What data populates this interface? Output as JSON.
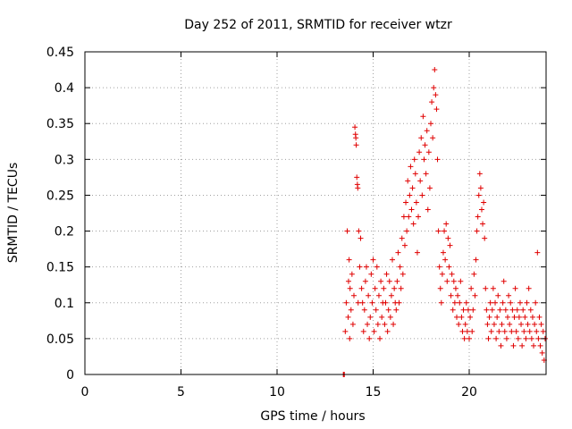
{
  "chart_data": {
    "type": "scatter",
    "title": "Day 252 of 2011, SRMTID for receiver wtzr",
    "xlabel": "GPS time / hours",
    "ylabel": "SRMTID / TECUs",
    "xlim": [
      0,
      24
    ],
    "ylim": [
      0,
      0.45
    ],
    "x_ticks": [
      0,
      5,
      10,
      15,
      20
    ],
    "y_ticks": [
      0,
      0.05,
      0.1,
      0.15,
      0.2,
      0.25,
      0.3,
      0.35,
      0.4,
      0.45
    ],
    "x_tick_labels": [
      "0",
      "5",
      "10",
      "15",
      "20"
    ],
    "y_tick_labels": [
      "0",
      "0.05",
      "0.1",
      "0.15",
      "0.2",
      "0.25",
      "0.3",
      "0.35",
      "0.4",
      "0.45"
    ],
    "grid": true,
    "marker": "+",
    "color": "#e00000",
    "series": [
      {
        "x": [
          13.45,
          13.47,
          13.5,
          13.55,
          13.6,
          13.65,
          13.7,
          13.72,
          13.75,
          13.78,
          13.8,
          13.85,
          13.9,
          13.95,
          14.0,
          14.05,
          14.08,
          14.1,
          14.12,
          14.15,
          14.18,
          14.2,
          14.22,
          14.25,
          14.3,
          14.35,
          14.4,
          14.45,
          14.5,
          14.55,
          14.6,
          14.65,
          14.7,
          14.75,
          14.8,
          14.85,
          14.9,
          14.95,
          15.0,
          15.05,
          15.1,
          15.15,
          15.2,
          15.25,
          15.3,
          15.35,
          15.4,
          15.45,
          15.5,
          15.55,
          15.6,
          15.65,
          15.7,
          15.75,
          15.8,
          15.85,
          15.9,
          15.95,
          16.0,
          16.05,
          16.1,
          16.15,
          16.2,
          16.25,
          16.3,
          16.35,
          16.4,
          16.45,
          16.5,
          16.55,
          16.6,
          16.65,
          16.7,
          16.75,
          16.8,
          16.85,
          16.9,
          16.95,
          17.0,
          17.05,
          17.1,
          17.15,
          17.2,
          17.25,
          17.3,
          17.35,
          17.4,
          17.45,
          17.5,
          17.55,
          17.6,
          17.65,
          17.7,
          17.75,
          17.8,
          17.85,
          17.9,
          17.95,
          18.0,
          18.05,
          18.1,
          18.15,
          18.2,
          18.25,
          18.3,
          18.35,
          18.4,
          18.45,
          18.5,
          18.55,
          18.6,
          18.65,
          18.7,
          18.75,
          18.8,
          18.85,
          18.9,
          18.95,
          19.0,
          19.05,
          19.1,
          19.15,
          19.2,
          19.25,
          19.3,
          19.35,
          19.4,
          19.45,
          19.5,
          19.55,
          19.6,
          19.65,
          19.7,
          19.75,
          19.8,
          19.85,
          19.9,
          19.95,
          20.0,
          20.05,
          20.1,
          20.15,
          20.2,
          20.25,
          20.3,
          20.35,
          20.4,
          20.45,
          20.5,
          20.55,
          20.6,
          20.65,
          20.7,
          20.75,
          20.8,
          20.85,
          20.9,
          20.95,
          21.0,
          21.05,
          21.1,
          21.15,
          21.2,
          21.25,
          21.3,
          21.35,
          21.4,
          21.45,
          21.5,
          21.55,
          21.6,
          21.65,
          21.7,
          21.75,
          21.8,
          21.85,
          21.9,
          21.95,
          22.0,
          22.05,
          22.1,
          22.15,
          22.2,
          22.25,
          22.3,
          22.35,
          22.4,
          22.45,
          22.5,
          22.55,
          22.6,
          22.65,
          22.7,
          22.75,
          22.8,
          22.85,
          22.9,
          22.95,
          23.0,
          23.05,
          23.1,
          23.15,
          23.2,
          23.25,
          23.3,
          23.35,
          23.4,
          23.45,
          23.5,
          23.55,
          23.6,
          23.65,
          23.7,
          23.75,
          23.8,
          23.85,
          23.9,
          23.95
        ],
        "y": [
          0.0,
          0.0,
          0.0,
          0.06,
          0.1,
          0.2,
          0.08,
          0.13,
          0.16,
          0.05,
          0.12,
          0.09,
          0.14,
          0.07,
          0.11,
          0.345,
          0.335,
          0.33,
          0.32,
          0.275,
          0.265,
          0.26,
          0.1,
          0.2,
          0.15,
          0.19,
          0.12,
          0.1,
          0.06,
          0.09,
          0.13,
          0.15,
          0.07,
          0.11,
          0.05,
          0.08,
          0.14,
          0.1,
          0.16,
          0.06,
          0.12,
          0.09,
          0.15,
          0.07,
          0.11,
          0.05,
          0.13,
          0.08,
          0.1,
          0.12,
          0.07,
          0.1,
          0.14,
          0.06,
          0.09,
          0.13,
          0.08,
          0.11,
          0.16,
          0.07,
          0.12,
          0.1,
          0.09,
          0.13,
          0.17,
          0.1,
          0.15,
          0.12,
          0.19,
          0.14,
          0.22,
          0.18,
          0.24,
          0.2,
          0.27,
          0.22,
          0.25,
          0.29,
          0.23,
          0.26,
          0.21,
          0.3,
          0.28,
          0.24,
          0.17,
          0.22,
          0.31,
          0.27,
          0.33,
          0.25,
          0.36,
          0.3,
          0.32,
          0.28,
          0.34,
          0.23,
          0.31,
          0.26,
          0.35,
          0.38,
          0.33,
          0.4,
          0.425,
          0.39,
          0.37,
          0.3,
          0.2,
          0.15,
          0.12,
          0.1,
          0.14,
          0.17,
          0.2,
          0.16,
          0.21,
          0.13,
          0.19,
          0.15,
          0.18,
          0.11,
          0.14,
          0.09,
          0.13,
          0.1,
          0.12,
          0.08,
          0.11,
          0.07,
          0.1,
          0.13,
          0.08,
          0.06,
          0.09,
          0.05,
          0.07,
          0.1,
          0.06,
          0.09,
          0.05,
          0.08,
          0.12,
          0.06,
          0.09,
          0.14,
          0.11,
          0.16,
          0.2,
          0.22,
          0.25,
          0.28,
          0.26,
          0.23,
          0.21,
          0.24,
          0.19,
          0.12,
          0.09,
          0.07,
          0.05,
          0.08,
          0.1,
          0.06,
          0.09,
          0.12,
          0.07,
          0.1,
          0.05,
          0.08,
          0.11,
          0.06,
          0.09,
          0.04,
          0.07,
          0.1,
          0.13,
          0.06,
          0.09,
          0.05,
          0.08,
          0.11,
          0.07,
          0.1,
          0.06,
          0.09,
          0.04,
          0.08,
          0.12,
          0.06,
          0.09,
          0.05,
          0.08,
          0.1,
          0.07,
          0.04,
          0.09,
          0.06,
          0.08,
          0.05,
          0.1,
          0.07,
          0.12,
          0.06,
          0.09,
          0.05,
          0.08,
          0.04,
          0.07,
          0.1,
          0.06,
          0.17,
          0.05,
          0.08,
          0.04,
          0.07,
          0.03,
          0.06,
          0.02,
          0.05
        ]
      }
    ]
  }
}
